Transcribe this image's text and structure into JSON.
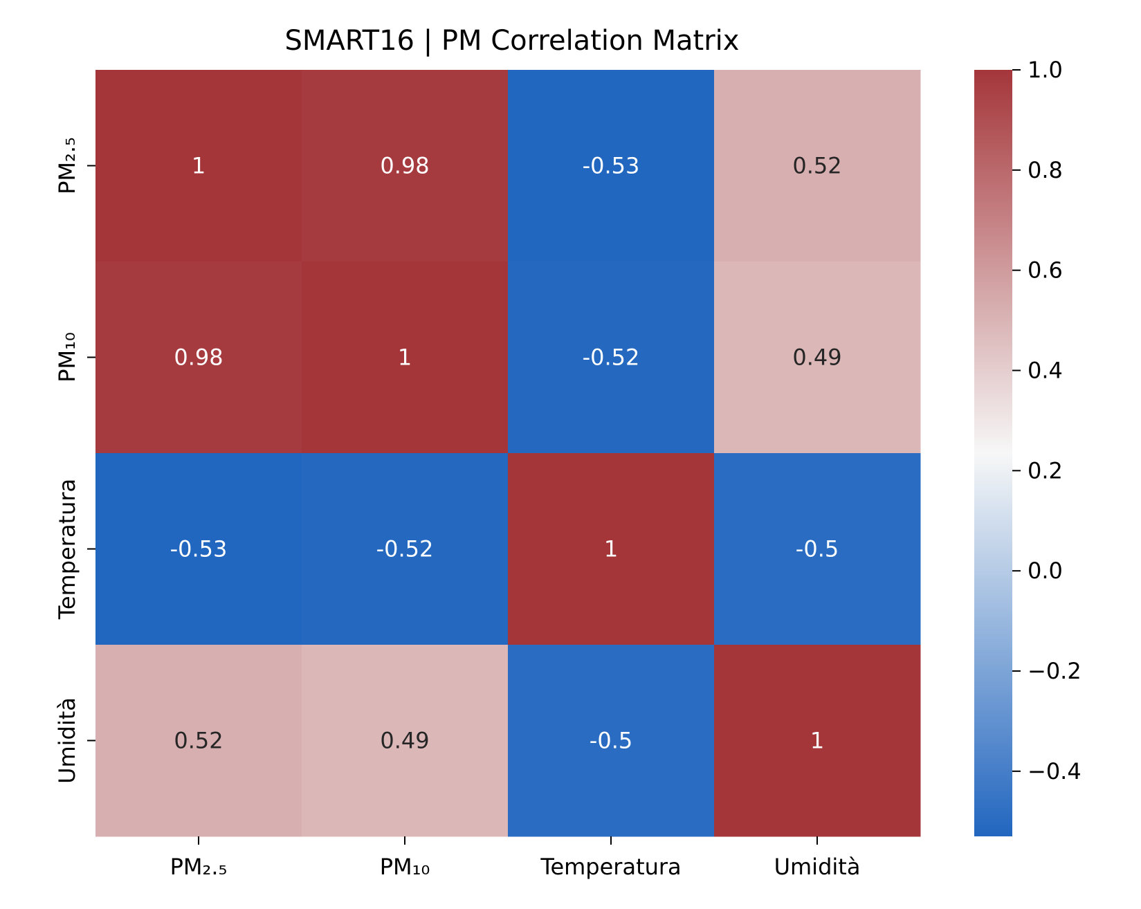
{
  "chart_data": {
    "type": "heatmap",
    "title": "SMART16 | PM Correlation Matrix",
    "x_labels": [
      "PM₂.₅",
      "PM₁₀",
      "Temperatura",
      "Umidità"
    ],
    "y_labels": [
      "PM₂.₅",
      "PM₁₀",
      "Temperatura",
      "Umidità"
    ],
    "values": [
      [
        1,
        0.98,
        -0.53,
        0.52
      ],
      [
        0.98,
        1,
        -0.52,
        0.49
      ],
      [
        -0.53,
        -0.52,
        1,
        -0.5
      ],
      [
        0.52,
        0.49,
        -0.5,
        1
      ]
    ],
    "annotations": [
      [
        "1",
        "0.98",
        "-0.53",
        "0.52"
      ],
      [
        "0.98",
        "1",
        "-0.52",
        "0.49"
      ],
      [
        "-0.53",
        "-0.52",
        "1",
        "-0.5"
      ],
      [
        "0.52",
        "0.49",
        "-0.5",
        "1"
      ]
    ],
    "colorbar": {
      "ticks": [
        1.0,
        0.8,
        0.6,
        0.4,
        0.2,
        0.0,
        -0.2,
        -0.4
      ],
      "tick_labels": [
        "1.0",
        "0.8",
        "0.6",
        "0.4",
        "0.2",
        "0.0",
        "−0.2",
        "−0.4"
      ],
      "range": [
        -0.53,
        1.0
      ],
      "colormap": [
        "#2166bf",
        "#f7f7f7",
        "#a4363a"
      ]
    },
    "grid": false,
    "legend": "colorbar-right"
  }
}
